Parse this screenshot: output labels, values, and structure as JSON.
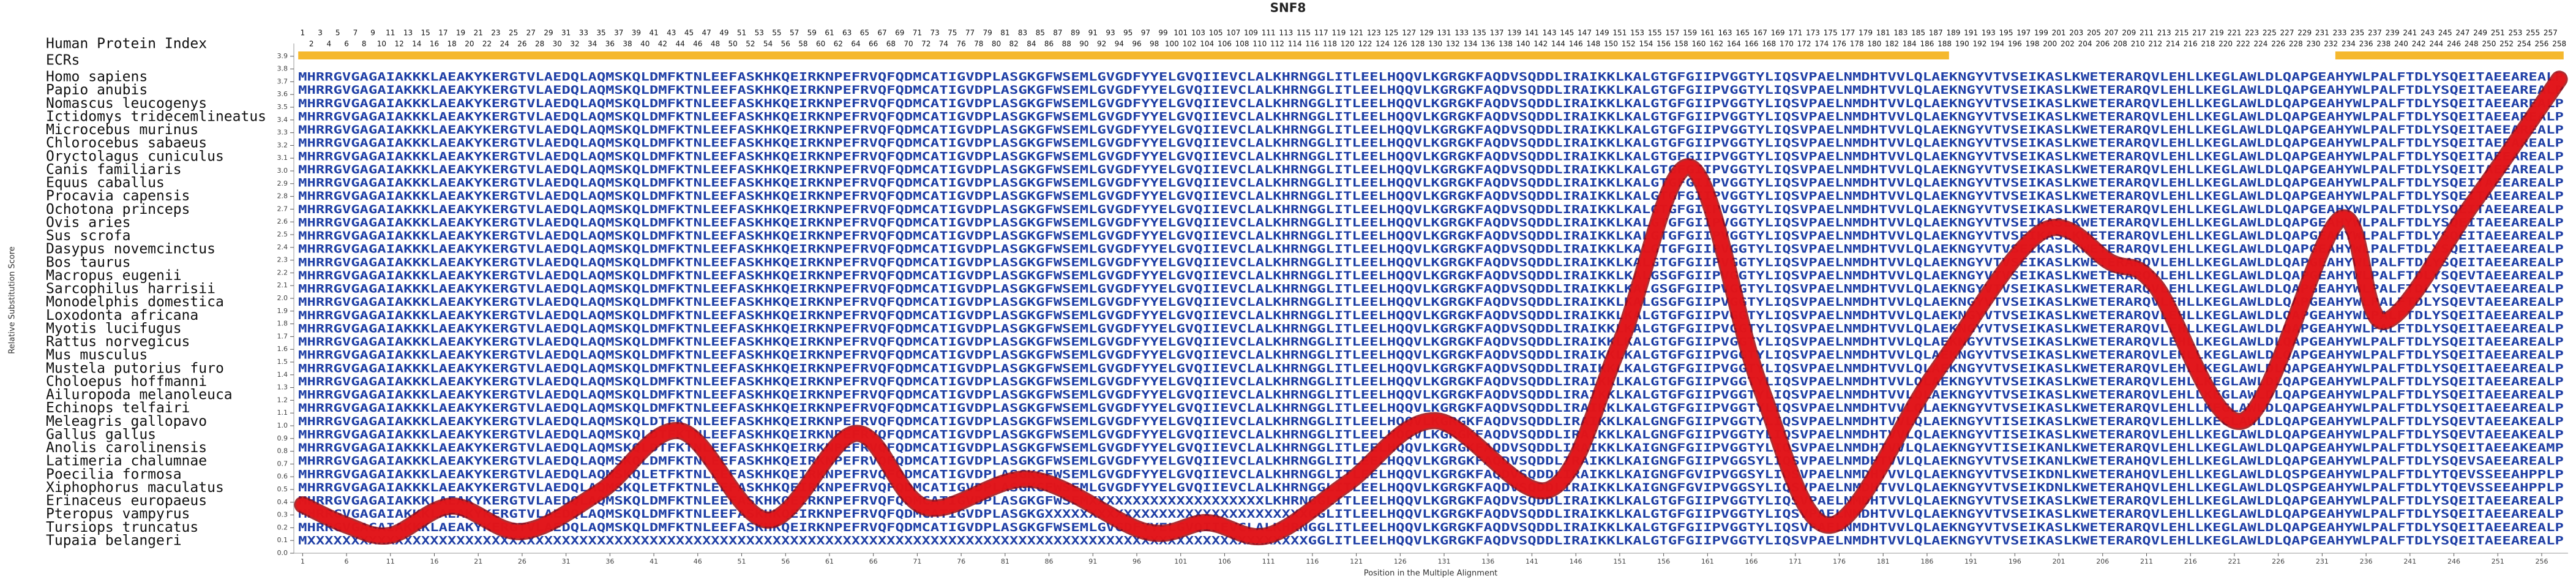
{
  "chart_data": {
    "type": "line",
    "title": "SNF8",
    "x_label": "Position in the Multiple Alignment",
    "y_label": "Relative Substitution Score",
    "x": [
      1,
      6,
      11,
      18,
      26,
      35,
      44,
      54,
      64,
      72,
      84,
      97,
      104,
      111,
      120,
      130,
      143,
      151,
      159,
      167,
      175,
      187,
      199,
      207,
      212,
      222,
      233,
      238,
      248,
      258
    ],
    "values": [
      0.38,
      0.22,
      0.14,
      0.37,
      0.17,
      0.49,
      0.96,
      0.26,
      0.94,
      0.36,
      0.58,
      0.17,
      0.24,
      0.14,
      0.55,
      1.04,
      0.5,
      1.64,
      3.03,
      1.31,
      0.22,
      1.42,
      2.52,
      2.28,
      2.1,
      1.04,
      2.62,
      1.82,
      2.73,
      3.72
    ],
    "color": "#e8161b",
    "xlim": [
      0,
      259
    ],
    "xticks": [
      1,
      6,
      11,
      16,
      21,
      26,
      31,
      36,
      41,
      46,
      51,
      56,
      61,
      66,
      71,
      76,
      81,
      86,
      91,
      96,
      101,
      106,
      111,
      116,
      121,
      126,
      131,
      136,
      141,
      146,
      151,
      156,
      161,
      166,
      171,
      176,
      181,
      186,
      191,
      196,
      201,
      206,
      211,
      216,
      221,
      226,
      231,
      236,
      241,
      246,
      251,
      256
    ],
    "ylim": [
      0,
      4.0
    ],
    "yticks": [
      {
        "value": 0,
        "label": "0.0"
      },
      0.1,
      0.2,
      0.3,
      0.4,
      0.5,
      0.6,
      0.7,
      0.8,
      0.9,
      {
        "value": 1,
        "label": "1.0"
      },
      1.1,
      1.2,
      1.3,
      1.4,
      1.5,
      1.6,
      1.7,
      1.8,
      1.9,
      {
        "value": 2,
        "label": "2.0"
      },
      2.1,
      2.2,
      2.3,
      2.4,
      2.5,
      2.6,
      2.7,
      2.8,
      2.9,
      {
        "value": 3,
        "label": "3.0"
      },
      3.1,
      3.2,
      3.3,
      3.4,
      3.5,
      3.6,
      3.7,
      3.8,
      3.9
    ]
  },
  "alignment": {
    "index_label": "Human Protein Index",
    "ecr_label": "ECRs",
    "color": "#1f3fa6",
    "ecr_color": "#f5b82e",
    "positions": [
      1,
      2,
      3,
      4,
      5,
      6,
      7,
      8,
      9,
      10,
      11,
      12,
      13,
      14,
      15,
      16,
      17,
      18,
      19,
      20,
      21,
      22,
      23,
      24,
      25,
      26,
      27,
      28,
      29,
      30,
      31,
      32,
      33,
      34,
      35,
      36,
      37,
      38,
      39,
      40,
      41,
      42,
      43,
      44,
      45,
      46,
      47,
      48,
      49,
      50,
      51,
      52,
      53,
      54,
      55,
      56,
      57,
      58,
      59,
      60,
      61,
      62,
      63,
      64,
      65,
      66,
      67,
      68,
      69,
      70,
      71,
      72,
      73,
      74,
      75,
      76,
      77,
      78,
      79,
      80,
      81,
      82,
      83,
      84,
      85,
      86,
      87,
      88,
      89,
      90,
      91,
      92,
      93,
      94,
      95,
      96,
      97,
      98,
      99,
      100,
      101,
      102,
      103,
      104,
      105,
      106,
      107,
      108,
      109,
      110,
      111,
      112,
      113,
      114,
      115,
      116,
      117,
      118,
      119,
      120,
      121,
      122,
      123,
      124,
      125,
      126,
      127,
      128,
      129,
      130,
      131,
      132,
      133,
      134,
      135,
      136,
      137,
      138,
      139,
      140,
      141,
      142,
      143,
      144,
      145,
      146,
      147,
      148,
      149,
      150,
      151,
      152,
      153,
      154,
      155,
      156,
      157,
      158,
      159,
      160,
      161,
      162,
      163,
      164,
      165,
      166,
      167,
      168,
      169,
      170,
      171,
      172,
      173,
      174,
      175,
      176,
      177,
      178,
      179,
      180,
      181,
      182,
      183,
      184,
      185,
      186,
      187,
      188,
      189,
      190,
      191,
      192,
      193,
      194,
      195,
      196,
      197,
      198,
      199,
      200,
      201,
      202,
      203,
      204,
      205,
      206,
      207,
      208,
      209,
      210,
      211,
      212,
      213,
      214,
      215,
      216,
      217,
      218,
      219,
      220,
      221,
      222,
      223,
      224,
      225,
      226,
      227,
      228,
      229,
      230,
      231,
      232,
      233,
      234,
      235,
      236,
      237,
      238,
      239,
      240,
      241,
      242,
      243,
      244,
      245,
      246,
      247,
      248,
      249,
      250,
      251,
      252,
      253,
      254,
      255,
      256,
      257,
      258
    ],
    "ecrs": [
      [
        1,
        188
      ],
      [
        233,
        258
      ]
    ],
    "rows": [
      {
        "species": "Homo sapiens",
        "sequence": "MHRRGVGAGAIAKKKLAEAKYKERGTVLAEDQLAQMSKQLDMFKTNLEEFASKHKQEIRKNPEFRVQFQDMCATIGVDPLASGKGFWSEMLGVGDFYYELGVQIIEVCLALKHRNGGLITLEELHQQVLKGRGKFAQDVSQDDLIRAIKKLKALGTGFGIIPVGGTYLIQSVPAELNMDHTVVLQLAEKNGYVTVSEIKASLKWETERARQVLEHLLKEGLAWLDLQAPGEAHYWLPALFTDLYSQEITAEEAREALP"
      },
      {
        "species": "Papio anubis",
        "sequence": "MHRRGVGAGAIAKKKLAEAKYKERGTVLAEDQLAQMSKQLDMFKTNLEEFASKHKQEIRKNPEFRVQFQDMCATIGVDPLASGKGFWSEMLGVGDFYYELGVQIIEVCLALKHRNGGLITLEELHQQVLKGRGKFAQDVSQDDLIRAIKKLKALGTGFGIIPVGGTYLIQSVPAELNMDHTVVLQLAEKNGYVTVSEIKASLKWETERARQVLEHLLKEGLAWLDLQAPGEAHYWLPALFTDLYSQEITAEEAREALP"
      },
      {
        "species": "Nomascus leucogenys",
        "sequence": "MHRRGVGAGAIAKKKLAEAKYKERGTVLAEDQLAQMSKQLDMFKTNLEEFASKHKQEIRKNPEFRVQFQDMCATIGVDPLASGKGFWSEMLGVGDFYYELGVQIIEVCLALKHRNGGLITLEELHQQVLKGRGKFAQDVSQDDLIRAIKKLKALGTGFGIIPVGGTYLIQSVPAELNMDHTVVLQLAEKNGYVTVSEIKASLKWETERARQVLEHLLKEGLAWLDLQAPGEAHYWLPALFTDLYSQEITAEEAREALP"
      },
      {
        "species": "Ictidomys tridecemlineatus",
        "sequence": "MHRRGVGAGAIAKKKLAEAKYKERGTVLAEDQLAQMSKQLDMFKTNLEEFASKHKQEIRKNPEFRVQFQDMCATIGVDPLASGKGFWSEMLGVGDFYYELGVQIIEVCLALKHRNGGLITLEELHQQVLKGRGKFAQDVSQDDLIRAIKKLKALGTGFGIIPVGGTYLIQSVPAELNMDHTVVLQLAEKNGYVTVSEIKASLKWETERARQVLEHLLKEGLAWLDLQAPGEAHYWLPALFTDLYSQEITAEEAREALP"
      },
      {
        "species": "Microcebus murinus",
        "sequence": "MHRRGVGAGAIAKKKLAEAKYKERGTVLAEDQLAQMSKQLDMFKTNLEEFASKHKQEIRKNPEFRVQFQDMCATIGVDPLASGKGFWSEMLGVGDFYYELGVQIIEVCLALKHRNGGLITLEELHQQVLKGRGKFAQDVSQDDLIRAIKKLKALGTGFGIIPVGGTYLIQSVPAELNMDHTVVLQLAEKNGYVTVSEIKASLKWETERARQVLEHLLKEGLAWLDLQAPGEAHYWLPALFTDLYSQEITAEEAREALP"
      },
      {
        "species": "Chlorocebus sabaeus",
        "sequence": "MHRRGVGAGAIAKKKLAEAKYKERGTVLAEDQLAQMSKQLDMFKTNLEEFASKHKQEIRKNPEFRVQFQDMCATIGVDPLASGKGFWSEMLGVGDFYYELGVQIIEVCLALKHRNGGLITLEELHQQVLKGRGKFAQDVSQDDLIRAIKKLKALGTGFGIIPVGGTYLIQSVPAELNMDHTVVLQLAEKNGYVTVSEIKASLKWETERARQVLEHLLKEGLAWLDLQAPGEAHYWLPALFTDLYSQEITAEEAREALP"
      },
      {
        "species": "Oryctolagus cuniculus",
        "sequence": "MHRRGVGAGAIAKKKLAEAKYKERGTVLAEDQLAQMSKQLDMFKTNLEEFASKHKQEIRKNPEFRVQFQDMCATIGVDPLASGKGFWSEMLGVGDFYYELGVQIIEVCLALKHRNGGLITLEELHQQVLKGRGKFAQDVSQDDLIRAIKKLKALGTGFGIIPVGGTYLIQSVPAELNMDHTVVLQLAEKNGYVTVSEIKASLKWETERARQVLEHLLKEGLAWLDLQAPGEAHYWLPALFTDLYSQEITAEEAREALP"
      },
      {
        "species": "Canis familiaris",
        "sequence": "MHRRGVGAGAIAKKKLAEAKYKERGTVLAEDQLAQMSKQLDMFKTNLEEFASKHKQEIRKNPEFRVQFQDMCATIGVDPLASGKGFWSEMLGVGDFYYELGVQIIEVCLALKHRNGGLITLEELHQQVLKGRGKFAQDVSQDDLIRAIKKLKALGTGFGIIPVGGTYLIQSVPAELNMDHTVVLQLAEKNGYVTVSEIKASLKWETERARQVLEHLLKEGLAWLDLQAPGEAHYWLPALFTDLYSQEITAEEAREALP"
      },
      {
        "species": "Equus caballus",
        "sequence": "MHRRGVGAGAIAKKKLAEAKYKERGTVLAEDQLAQMSKQLDMFKTNLEEFASKHKQEIRKNPEFRVQFQDMCATIGVDPLASGKGFWSEMLGVGDFYYELGVQIIEVCLALKHRNGGLITLEELHQQVLKGRGKFAQDVSQDDLIRAIKKLKALGTGFGIIPVGGTYLIQSVPAELNMDHTVVLQLAEKNGYVTVSEIKASLKWETERARQVLEHLLKEGLAWLDLQAPGEAHYWLPALFTDLYSQEITAEEAREALP"
      },
      {
        "species": "Procavia capensis",
        "sequence": "MHRRGVGAGAIAKKKLAEAKYKERGTVLAEDQLAQMSKQLDMFKTNLEEFASKHKQEIRKNPEFRVQFQDMCATIGVDPLASGKGFWSEMLGVGDFYYELGVQIIEVCLALKHRNGGLITLEELHQQVLKGRGKFAQDVSQDDLIRAIKKLKALGTGFGIIPVGGTYLIQSVPAELNMDHTVVLQLAEKNGYVTVSEIKASLKWETERARQVLEHLLKEGLAWLDLQAPGEAHYWLPALFTDLYSQEITAEEAREALP"
      },
      {
        "species": "Ochotona princeps",
        "sequence": "MHRRGVGAGAIAKKKLAEAKYKERGTVLAEDQLAQMSKQLDMFKTNLEEFASKHKQEIRKNPEFRVQFQDMCATIGVDPLASGKGFWSEMLGVGDFYYELGVQIIEVCLALKHRNGGLITLEELHQQVLKGRGKFAQDVSQDDLIRAIKKLKALGTGFGIIPVGGTYLIQSVPAELNMDHTVVLQLAEKNGYVTVSEIKASLKWETERARQVLEHLLKEGLAWLDLQAPGEAHYWLPALFTDLYSQEITAEEAREALP"
      },
      {
        "species": "Ovis aries",
        "sequence": "MHRRGVGAGAIAKKKLAEAKYKERGTVLAEDQLAQMSKQLDMFKTNLEEFASKHKQEIRKNPEFRVQFQDMCATIGVDPLASGKGFWSEMLGVGDFYYELGVQIIEVCLALKHRNGGLITLEELHQQVLKGRGKFAQDVSQDDLIRAIKKLKALGTGFGIIPVGGTYLIQSVPAELNMDHTVVLQLAEKNGYVTVSEIKASLKWETERARQVLEHLLKEGLAWLDLQAPGEAHYWLPALFTDLYSQEITAEEAREALP"
      },
      {
        "species": "Sus scrofa",
        "sequence": "MHRRGVGAGAIAKKKLAEAKYKERGTVLAEDQLAQMSKQLDMFKTNLEEFASKHKQEIRKNPEFRVQFQDMCATIGVDPLASGKGFWSEMLGVGDFYYELGVQIIEVCLALKHRNGGLITLEELHQQVLKGRGKFAQDVSQDDLIRAIKKLKALGTGFGIIPVGGTYLIQSVPAELNMDHTVVLQLAEKNGYVTVSEIKASLKWETERARQVLEHLLKEGLAWLDLQAPGEAHYWLPALFTDLYSQEITAEEAREALP"
      },
      {
        "species": "Dasypus novemcinctus",
        "sequence": "MHRRGVGAGAIAKKKLAEAKYKERGTVLAEDQLAQMSKQLDMFKTNLEEFASKHKQEIRKNPEFRVQFQDMCATIGVDPLASGKGFWSEMLGVGDFYYELGVQIIEVCLALKHRNGGLITLEELHQQVLKGRGKFAQDVSQDDLIRAIKKLKALGTGFGIIPVGGTYLIQSVPAELNMDHTVVLQLAEKNGYVTVSEIKASLKWETERARQVLEHLLKEGLAWLDLQAPGEAHYWLPALFTDLYSQEITAEEAREALP"
      },
      {
        "species": "Bos taurus",
        "sequence": "MHRRGVGAGAIAKKKLAEAKYKERGTVLAEDQLAQMSKQLDMFKTNLEEFASKHKQEIRKNPEFRVQFQDMCATIGVDPLASGKGFWSEMLGVGDFYYELGVQIIEVCLALKHRNGGLITLEELHQQVLKGRGKFAQDVSQDDLIRAIKKLKALGTGFGIIPVGGTYLIQSVPAELNMDHTVVLQLAEKNGYVTVSEIKASLKWETERARQVLEHLLKEGLAWLDLQAPGEAHYWLPALFTDLYSQEITAEEAREALP"
      },
      {
        "species": "Macropus eugenii",
        "sequence": "MHRRGVGAGAIAKKKLAEAKYKERGTVLAEDQLAQMSKQLDMFKTNLEEFASKHKQEIRKNPEFRVQFQDMCATIGVDPLASGKGFWSEMLGVGDFYYELGVQIIEVCLALKHRNGGLITLEELHQQVLKGRGKFAQDVSQDDLIRAIKKLKALGSGFGIIPVGGTYLIQSVPAELNMDHTVVLQLAEKNGYVTVSEIKASLKWETERARQVLEHLLKEGLAWLDLQAPGEAHYWLPALFTDLYSQEVTAEEAREALP"
      },
      {
        "species": "Sarcophilus harrisii",
        "sequence": "MHRRGVGAGAIAKKKLAEAKYKERGTVLAEDQLAQMSKQLDMFKTNLEEFASKHKQEIRKNPEFRVQFQDMCATIGVDPLASGKGFWSEMLGVGDFYYELGVQIIEVCLALKHRNGGLITLEELHQQVLKGRGKFAQDVSQDDLIRAIKKLKALGSGFGIIPVGGTYLIQSVPAELNMDHTVVLQLAEKNGYVTVSEIKASLKWETERARQVLEHLLKEGLAWLDLQAPGEAHYWLPALFTDLYSQEVTAEEAREALP"
      },
      {
        "species": "Monodelphis domestica",
        "sequence": "MHRRGVGAGAIAKKKLAEAKYKERGTVLAEDQLAQMSKQLDMFKTNLEEFASKHKQEIRKNPEFRVQFQDMCATIGVDPLASGKGFWSEMLGVGDFYYELGVQIIEVCLALKHRNGGLITLEELHQQVLKGRGKFAQDVSQDDLIRAIKKLKALGSGFGIIPVGGTYLIQSVPAELNMDHTVVLQLAEKNGYVTVSEIKASLKWETERARQVLEHLLKEGLAWLDLQAPGEAHYWLPALFTDLYSQEVTAEEAREALP"
      },
      {
        "species": "Loxodonta africana",
        "sequence": "MHRRGVGAGAIAKKKLAEAKYKERGTVLAEDQLAQMSKQLDMFKTNLEEFASKHKQEIRKNPEFRVQFQDMCATIGVDPLASGKGFWSEMLGVGDFYYELGVQIIEVCLALKHRNGGLITLEELHQQVLKGRGKFAQDVSQDDLIRAIKKLKALGTGFGIIPVGGTYLIQSVPAELNMDHTVVLQLAEKNGYVTVSEIKASLKWETERARQVLEHLLKEGLAWLDLQAPGEAHYWLPALFTDLYSQEITAEEAREALP"
      },
      {
        "species": "Myotis lucifugus",
        "sequence": "MHRRGVGAGAIAKKKLAEAKYKERGTVLAEDQLAQMSKQLDMFKTNLEEFASKHKQEIRKNPEFRVQFQDMCATIGVDPLASGKGFWSEMLGVGDFYYELGVQIIEVCLALKHRNGGLITLEELHQQVLKGRGKFAQDVSQDDLIRAIKKLKALGTGFGIIPVGGTYLIQSVPAELNMDHTVVLQLAEKNGYVTVSEIKASLKWETERARQVLEHLLKEGLAWLDLQAPGEAHYWLPALFTDLYSQEITAEEAREALP"
      },
      {
        "species": "Rattus norvegicus",
        "sequence": "MHRRGVGAGAIAKKKLAEAKYKERGTVLAEDQLAQMSKQLDMFKTNLEEFASKHKQEIRKNPEFRVQFQDMCATIGVDPLASGKGFWSEMLGVGDFYYELGVQIIEVCLALKHRNGGLITLEELHQQVLKGRGKFAQDVSQDDLIRAIKKLKALGTGFGIIPVGGTYLIQSVPAELNMDHTVVLQLAEKNGYVTVSEIKASLKWETERARQVLEHLLKEGLAWLDLQAPGEAHYWLPALFTDLYSQEITAEEAREALP"
      },
      {
        "species": "Mus musculus",
        "sequence": "MHRRGVGAGAIAKKKLAEAKYKERGTVLAEDQLAQMSKQLDMFKTNLEEFASKHKQEIRKNPEFRVQFQDMCATIGVDPLASGKGFWSEMLGVGDFYYELGVQIIEVCLALKHRNGGLITLEELHQQVLKGRGKFAQDVSQDDLIRAIKKLKALGTGFGIIPVGGTYLIQSVPAELNMDHTVVLQLAEKNGYVTVSEIKASLKWETERARQVLEHLLKEGLAWLDLQAPGEAHYWLPALFTDLYSQEITAEEAREALP"
      },
      {
        "species": "Mustela putorius furo",
        "sequence": "MHRRGVGAGAIAKKKLAEAKYKERGTVLAEDQLAQMSKQLDMFKTNLEEFASKHKQEIRKNPEFRVQFQDMCATIGVDPLASGKGFWSEMLGVGDFYYELGVQIIEVCLALKHRNGGLITLEELHQQVLKGRGKFAQDVSQDDLIRAIKKLKALGTGFGIIPVGGTYLIQSVPAELNMDHTVVLQLAEKNGYVTVSEIKASLKWETERARQVLEHLLKEGLAWLDLQAPGEAHYWLPALFTDLYSQEITAEEAREALP"
      },
      {
        "species": "Choloepus hoffmanni",
        "sequence": "MHRRGVGAGAIAKKKLAEAKYKERGTVLAEDQLAQMSKQLDMFKTNLEEFASKHKQEIRKNPEFRVQFQDMCATIGVDPLASGKGFWSEMLGVGDFYYELGVQIIEVCLALKHRNGGLITLEELHQQVLKGRGKFAQDVSQDDLIRAIKKLKALGTGFGIIPVGGTYLIQSVPAELNMDHTVVLQLAEKNGYVTVSEIKASLKWETERARQVLEHLLKEGLAWLDLQAPGEAHYWLPALFTDLYSQEITAEEAREALP"
      },
      {
        "species": "Ailuropoda melanoleuca",
        "sequence": "MHRRGVGAGAIAKKKLAEAKYKERGTVLAEDQLAQMSKQLDMFKTNLEEFASKHKQEIRKNPEFRVQFQDMCATIGVDPLASGKGFWSEMLGVGDFYYELGVQIIEVCLALKHRNGGLITLEELHQQVLKGRGKFAQDVSQDDLIRAIKKLKALGTGFGIIPVGGTYLIQSVPAELNMDHTVVLQLAEKNGYVTVSEIKASLKWETERARQVLEHLLKEGLAWLDLQAPGEAHYWLPALFTDLYSQEITAEEAREALP"
      },
      {
        "species": "Echinops telfairi",
        "sequence": "MHRRGVGAGAIAKKKLAEAKYKERGTVLAEDQLAQMSKQLDMFKTNLEEFASKHKQEIRKNPEFRVQFQDMCATIGVDPLASGKGFWSEMLGVGDFYYELGVQIIEVCLALKHRNGGLITLEELHQQVLKGRGKFAQDVSQDDLIRAIKKLKALGTGFGIIPVGGTYLIQSVPAELNMDHTVVLQLAEKNGYVTVSEIKASLKWETERARQVLEHLLKEGLAWLDLQAPGEAHYWLPALFTDLYSQEITAEEAREALP"
      },
      {
        "species": "Meleagris gallopavo",
        "sequence": "MHRRGVGAGAIAKKKLAEAKYKERGTVLAEDQLAQMSKQLDTFKTNLEEFASKHKQEIRKNPEFRVQFQDMCATIGVDPLASGKGFWSEMLGVGDFYYELGVQIIEVCLALKHRNGGLITLEELHQQVLKGRGKFAQDVSQDDLIRAIKKLKALGNGFGIIPVGGTYLIQSVPAELNMDHTVVLQLAEKNGYVTISEIKASLKWETERARQVLEHLLKEGLAWLDLQAPGEAHYWLPALFTDLYSQEVTAEEAKEALP"
      },
      {
        "species": "Gallus gallus",
        "sequence": "MHRRGVGAGAIAKKKLAEAKYKERGTVLAEDQLAQMSKQLDTFKTNLEEFASKHKQEIRKNPEFRVQFQDMCATIGVDPLASGKGFWSEMLGVGDFYYELGVQIIEVCLALKHRNGGLITLEELHQQVLKGRGKFAQDVSQDDLIRAIKKLKALGNGFGIIPVGGTYLIQSVPAELNMDHTVVLQLAEKNGYVTISEIKASLKWETERARQVLEHLLKEGLAWLDLQAPGEAHYWLPALFTDLYSQEVTAEEAKEALP"
      },
      {
        "species": "Anolis carolinensis",
        "sequence": "MHRRGVGAGAIAKKKLAEAKYKERGTVLAEDQLAQMSKQLDTFKTNLEEFASKHKQEIRKNPEFRVQFQDMCATIGVDPLASGKGFWSEMLGVGDFYYELGVQIIEVCLALKHRNGGLITLEELHQQVLKGRGKFAQDVSQDDLIRAIKKLKAIGNGFGIIPVGGTYLIQSVPAELNMDHTVVLQLAEKNGYVTISEIKANLKWETERARQVLEHLLKEGLAWLDLQAPGEAHYWLPALFTDLYSQEITAEEAKEAMP"
      },
      {
        "species": "Latimeria chalumnae",
        "sequence": "MHRRGVGAGAIAKKKLAEAKYKERGTVLAEDQLAQMSKQLDMFKTNLEEFASKHKQEIRKNPEFRVQFQDMCATIGVDPLASGKGFWSEMLGVGDFYYELGVQIIEVCLALKHRNGGLITLEELHQQVLKGRGKFAQDVSQDDLIRAIKKLKAIGNGFGIIPVGGSYLIQSVPAELNMDHTVVLQLAEKNGYVTVSEIKANLKWETERAHQVLEHLLKEGLAWLDLQAPGEAHYWLPALFTDLYSQEVSAEEAREALP"
      },
      {
        "species": "Poecilia formosa",
        "sequence": "MHRRGVGAGAIAKKKLAEAKYKERGTVLAEDQLAQMSKQLETFKTNLEEFASKHKQEIRKNPEFRVQFQDMCATIGVDPLASGKGFWSEMLGVGDFYYELGVQIIEVCLALKHRNGGLITLEELHQQVLKGRGKFAQDVSQDDLIRAIKKLKAIGNGFGVIPVGGSYLIQSVPAELNMDHTVVLQLAEKNGYVTVSEIKDNLKWETERAHQVLEHLLKEGLAWLDLQSPGEAHYWLPALFTDLYTQEVSSEEAHPPLP"
      },
      {
        "species": "Xiphophorus maculatus",
        "sequence": "MHRRGVGAGAIAKKKLAEAKYKERGTVLAEDQLAQMSKQLETFKTNLEEFASKHKQEIRKNPEFRVQFQDMCATIGVDPLASGKGFWSEMLGVGDFYYELGVQIIEVCLALKHRNGGLITLEELHQQVLKGRGKFAQDVSQDDLIRAIKKLKAIGNGFGVIPVGGSYLIQSVPAELNMDHTVVLQLAEKNGYVTVSEIKDNLKWETERAHQVLEHLLKEGLAWLDLQSPGEAHYWLPALFTDLYTQEVSSEEAHPPLP"
      },
      {
        "species": "Erinaceus europaeus",
        "sequence": "MHRRGVGAGAIAKKKLAEAKYKERGTVLAEDQLAQMSKQLDMFKTNLEEFASKHKQEIRKNPEFRVQFQDMCATIGVDPLASGKGFWSEMXXXXXXXXXXXXXXXXXXXXLKHRNGGLITLEELHQQVLKGRGKFAQDVSQDDLIRAIKKLKALGTGFGIIPVGGTYLIQSVPAELNMDHTVVLQLAEKNGYVTVSEIKASLKWETERARQVLEHLLKEGLAWLDLQAPGEAHYWLPALFTDLYSQEITAEEAREALP"
      },
      {
        "species": "Pteropus vampyrus",
        "sequence": "MHRRGVGAGAIAKKKLAEAKYKERGTVLAEDQLAQMSKQLDMFKTNLEEFASKHKQEIRKNPEFRVQFQDMCATIGVDPLASGKGXXXXXXXXXXXXXXXXXXXXXXXXXXXXXXGGLITLEELHQQVLKGRGKFAQDVSQDDLIRAIKKLKALGTGFGIIPVGGTYLIQSVPAELNMDHTVVLQLAEKNGYVTVSEIKASLKWETERARQVLEHLLKEGLAWLDLQAPGEAHYWLPALFTDLYSQEITAEEAREALP"
      },
      {
        "species": "Tursiops truncatus",
        "sequence": "MHRRGVGAGAIAKKKLAEAKYKERGTVLAEDQLAQMSKQLDMFKTNLEEFASKHKQEIRKNPEFRVQFQDMCATIGVDPLASGKGFWSEMLGVGDFYYELGVQIIEVCLALKHRNGGLITLEELHQQVLKGRGKFAQDVSQDDLIRAIKKLKALGTGFGIIPVGGTYLIQSVPAELNMDHTVVLQLAEKNGYVTVSEIKASLKWETERARQVLEHLLKEGLAWLDLQAPGEAHYWLPALFTDLYSQEITAEEAREALP"
      },
      {
        "species": "Tupaia belangeri",
        "sequence": "MXXXXXXXXXXXXXXXXXXXXXXXXXXXXXXXXXXXXXXXXXXXXXXXXXXXXXXXXXXXXXXXXXXXXXXXXXXXXXXXXXXXXXXXXXXXXXXXXXXXXXXXXXXXXXXXXXXGGLITLEELHQQVLKGRGKFAQDVSQDDLIRAIKKLKALGTGFGIIPVGGTYLIQSVPAELNMDHTVVLQLAEKNGYVTVSEIKASLKWETERARQVLEHLLKEGLAWLDLQAPGEAHYWLPALFTDLYSQEITAEEAREALP"
      }
    ]
  }
}
